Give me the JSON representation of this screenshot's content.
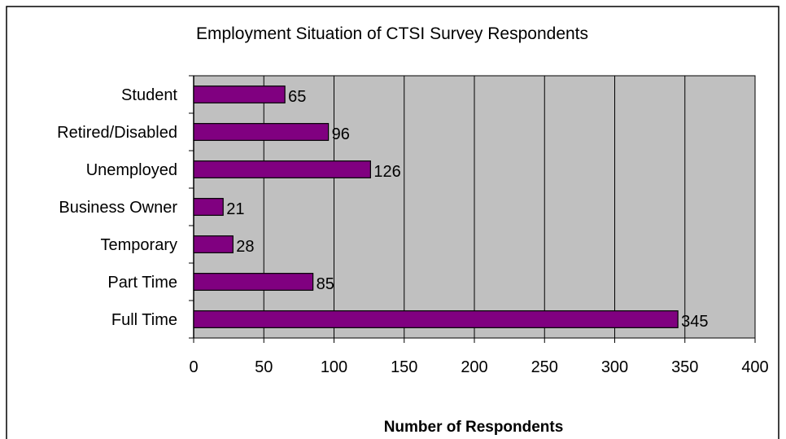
{
  "colors": {
    "bar_fill": "#800080",
    "plot_background": "#c0c0c0",
    "gridline": "#000000",
    "frame": "#000000"
  },
  "chart_data": {
    "type": "bar",
    "orientation": "horizontal",
    "title": "Employment Situation of CTSI Survey Respondents",
    "xlabel": "Number of Respondents",
    "ylabel": "",
    "categories": [
      "Student",
      "Retired/Disabled",
      "Unemployed",
      "Business Owner",
      "Temporary",
      "Part Time",
      "Full Time"
    ],
    "values": [
      65,
      96,
      126,
      21,
      28,
      85,
      345
    ],
    "data_labels": [
      "65",
      "96",
      "126",
      "21",
      "28",
      "85",
      "345"
    ],
    "xlim": [
      0,
      400
    ],
    "x_ticks": [
      0,
      50,
      100,
      150,
      200,
      250,
      300,
      350,
      400
    ],
    "x_tick_labels": [
      "0",
      "50",
      "100",
      "150",
      "200",
      "250",
      "300",
      "350",
      "400"
    ],
    "grid": "vertical",
    "legend": "none"
  }
}
